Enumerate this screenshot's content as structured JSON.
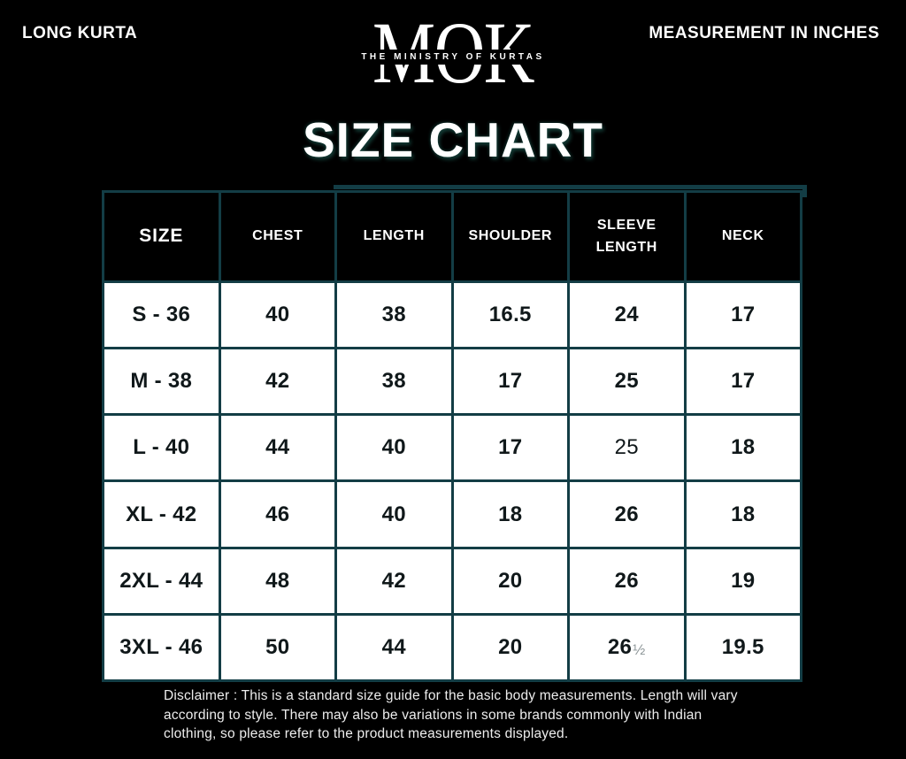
{
  "header": {
    "left_label": "LONG KURTA",
    "right_label": "MEASUREMENT IN INCHES",
    "logo": {
      "monogram": "MOK",
      "tagline": "THE MINISTRY OF KURTAS"
    }
  },
  "title": "SIZE CHART",
  "chart_data": {
    "type": "table",
    "title": "SIZE CHART",
    "units": "inches",
    "columns": [
      "SIZE",
      "CHEST",
      "LENGTH",
      "SHOULDER",
      "SLEEVE\nLENGTH",
      "NECK"
    ],
    "rows": [
      [
        "S - 36",
        "40",
        "38",
        "16.5",
        "24",
        "17"
      ],
      [
        "M - 38",
        "42",
        "38",
        "17",
        "25",
        "17"
      ],
      [
        "L - 40",
        "44",
        "40",
        "17",
        "25",
        "18"
      ],
      [
        "XL - 42",
        "46",
        "40",
        "18",
        "26",
        "18"
      ],
      [
        "2XL - 44",
        "48",
        "42",
        "20",
        "26",
        "19"
      ],
      [
        "3XL - 46",
        "50",
        "44",
        "20",
        "26½",
        "19.5"
      ]
    ],
    "light_weight_cells": [
      [
        2,
        4
      ]
    ]
  },
  "disclaimer": "Disclaimer : This is a standard size guide for the basic body measurements. Length will vary\naccording to style. There may also be variations in some brands commonly with Indian\nclothing, so please refer to the product measurements displayed.",
  "colors": {
    "background": "#000000",
    "table_border_teal": "#133d45",
    "header_cell_bg": "#000000",
    "data_cell_bg": "#ffffff",
    "data_text": "#10181a",
    "fraction_gray": "#8d9698"
  }
}
